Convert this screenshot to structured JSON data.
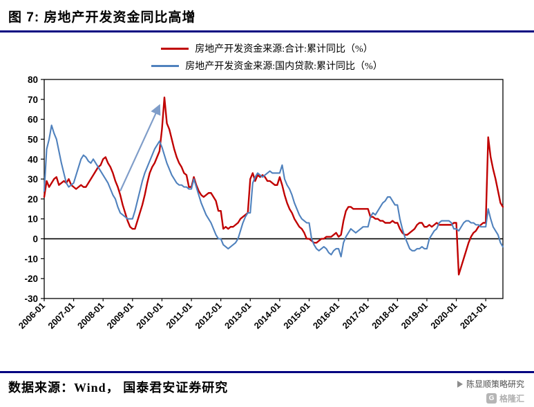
{
  "page": {
    "title": "图 7:  房地产开发资金同比高增"
  },
  "footer": {
    "source": "数据来源：Wind， 国泰君安证券研究",
    "credit": "陈显顺策略研究",
    "brand": "格隆汇",
    "brand_mark": "G"
  },
  "chart_data": {
    "type": "line",
    "title": "房地产开发资金同比高增",
    "x_start": "2006-01",
    "x_frequency": "monthly",
    "x_tick_labels": [
      "2006-01",
      "2007-01",
      "2008-01",
      "2009-01",
      "2010-01",
      "2011-01",
      "2012-01",
      "2013-01",
      "2014-01",
      "2015-01",
      "2016-01",
      "2017-01",
      "2018-01",
      "2019-01",
      "2020-01",
      "2021-01"
    ],
    "ylim": [
      -30,
      80
    ],
    "yticks": [
      80,
      70,
      60,
      50,
      40,
      30,
      20,
      10,
      0,
      -10,
      -20,
      -30
    ],
    "grid": false,
    "legend_position": "top",
    "axis_color": "#000000",
    "zero_line": true,
    "series": [
      {
        "name": "房地产开发资金来源:合计:累计同比（%）",
        "color": "#C00000",
        "values": [
          21,
          29,
          26,
          28,
          30,
          31,
          27,
          28,
          29,
          28,
          30,
          27,
          26,
          25,
          26,
          27,
          26,
          26,
          28,
          30,
          32,
          34,
          36,
          37,
          40,
          41,
          38,
          36,
          33,
          29,
          26,
          22,
          17,
          13,
          9,
          6,
          5,
          5,
          9,
          13,
          17,
          22,
          28,
          33,
          36,
          38,
          41,
          44,
          55,
          71,
          58,
          55,
          50,
          45,
          41,
          38,
          36,
          33,
          32,
          26,
          26,
          31,
          27,
          24,
          22,
          21,
          22,
          23,
          23,
          21,
          19,
          14,
          14,
          5,
          6,
          5,
          6,
          6,
          7,
          8,
          10,
          11,
          12,
          13,
          30,
          33,
          29,
          32,
          31,
          32,
          31,
          29,
          29,
          28,
          27,
          27,
          31,
          27,
          22,
          18,
          15,
          13,
          10,
          8,
          6,
          5,
          3,
          0,
          0,
          -1,
          -2,
          -2,
          -1,
          0,
          0,
          1,
          1,
          1,
          2,
          3,
          1,
          2,
          9,
          14,
          16,
          16,
          15,
          15,
          15,
          15,
          15,
          15,
          15,
          11,
          11,
          10,
          10,
          9,
          9,
          8,
          8,
          8,
          9,
          8,
          8,
          5,
          3,
          2,
          2,
          3,
          4,
          5,
          7,
          8,
          8,
          6,
          6,
          7,
          6,
          7,
          8,
          7,
          7,
          7,
          7,
          7,
          7,
          8,
          8,
          -18,
          -14,
          -10,
          -6,
          -2,
          1,
          3,
          4,
          6,
          7,
          8,
          8,
          51,
          41,
          35,
          30,
          24,
          18,
          16
        ]
      },
      {
        "name": "房地产开发资金来源:国内贷款:累计同比（%）",
        "color": "#4F81BD",
        "values": [
          24,
          45,
          50,
          57,
          53,
          50,
          44,
          38,
          33,
          28,
          26,
          27,
          28,
          32,
          36,
          40,
          42,
          41,
          39,
          38,
          40,
          38,
          36,
          34,
          32,
          30,
          28,
          25,
          22,
          20,
          16,
          13,
          12,
          11,
          10,
          10,
          10,
          14,
          19,
          24,
          29,
          33,
          36,
          39,
          42,
          45,
          47,
          49,
          46,
          42,
          38,
          35,
          32,
          30,
          28,
          27,
          27,
          26,
          26,
          25,
          25,
          30,
          26,
          22,
          18,
          15,
          12,
          10,
          8,
          5,
          2,
          0,
          0,
          -3,
          -4,
          -5,
          -4,
          -3,
          -2,
          0,
          4,
          8,
          11,
          13,
          13,
          28,
          31,
          33,
          32,
          31,
          32,
          33,
          34,
          33,
          33,
          33,
          33,
          37,
          30,
          27,
          25,
          22,
          18,
          15,
          12,
          10,
          9,
          8,
          8,
          0,
          -3,
          -5,
          -6,
          -5,
          -4,
          -5,
          -7,
          -8,
          -6,
          -5,
          -5,
          -9,
          -2,
          1,
          3,
          5,
          4,
          3,
          4,
          5,
          6,
          6,
          6,
          11,
          13,
          12,
          14,
          16,
          18,
          19,
          21,
          21,
          19,
          17,
          17,
          10,
          5,
          1,
          -2,
          -5,
          -6,
          -6,
          -5,
          -5,
          -4,
          -5,
          -5,
          0,
          2,
          4,
          5,
          8,
          9,
          9,
          9,
          9,
          8,
          5,
          5,
          4,
          6,
          8,
          9,
          9,
          8,
          8,
          7,
          7,
          6,
          6,
          6,
          15,
          10,
          6,
          4,
          2,
          -2,
          -4
        ]
      }
    ],
    "annotation_arrow": {
      "from": {
        "i": 31,
        "v": 24
      },
      "to": {
        "i": 47,
        "v": 67
      },
      "color": "#7F9DC9"
    }
  }
}
